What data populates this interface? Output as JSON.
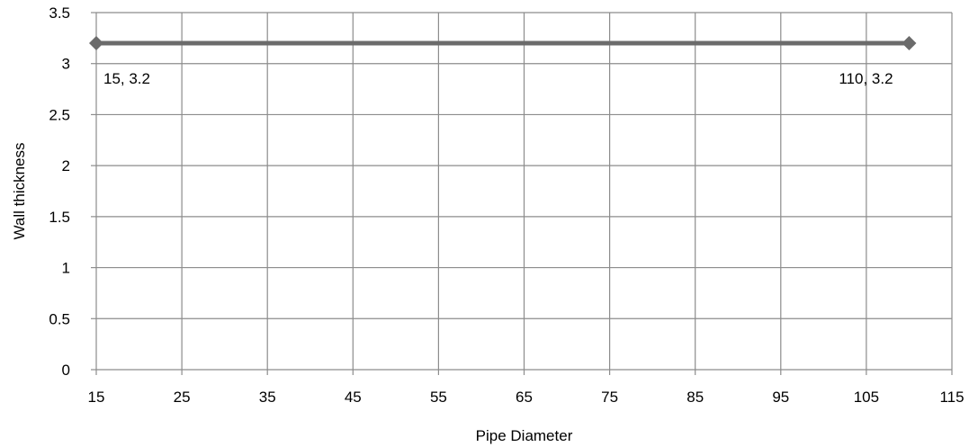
{
  "chart_data": {
    "type": "scatter",
    "title": "",
    "xlabel": "Pipe Diameter",
    "ylabel": "Wall thickness",
    "xlim": [
      15,
      115
    ],
    "ylim": [
      0,
      3.5
    ],
    "xticks": [
      "15",
      "25",
      "35",
      "45",
      "55",
      "65",
      "75",
      "85",
      "95",
      "105",
      "115"
    ],
    "yticks": [
      "0",
      "0.5",
      "1",
      "1.5",
      "2",
      "2.5",
      "3",
      "3.5"
    ],
    "grid": true,
    "legend": "none",
    "series": [
      {
        "points": [
          {
            "x": 15,
            "y": 3.2,
            "label": "15, 3.2"
          },
          {
            "x": 110,
            "y": 3.2,
            "label": "110, 3.2"
          }
        ],
        "color": "#6b6b6b",
        "marker": "diamond",
        "connected": true
      }
    ]
  }
}
